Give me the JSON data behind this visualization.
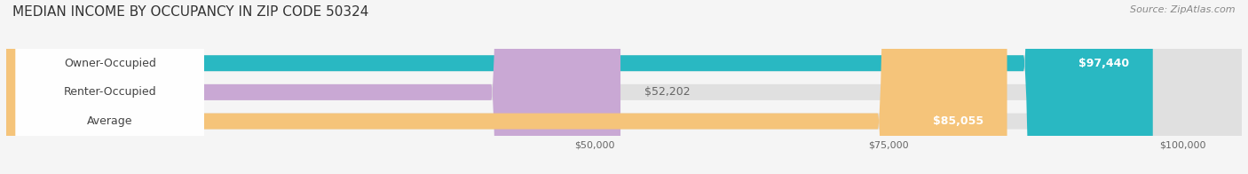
{
  "title": "MEDIAN INCOME BY OCCUPANCY IN ZIP CODE 50324",
  "source": "Source: ZipAtlas.com",
  "categories": [
    "Owner-Occupied",
    "Renter-Occupied",
    "Average"
  ],
  "values": [
    97440,
    52202,
    85055
  ],
  "bar_colors": [
    "#29b8c2",
    "#c9a8d4",
    "#f5c47a"
  ],
  "value_labels": [
    "$97,440",
    "$52,202",
    "$85,055"
  ],
  "xmax": 105000,
  "xticks": [
    50000,
    75000,
    100000
  ],
  "xtick_labels": [
    "$50,000",
    "$75,000",
    "$100,000"
  ],
  "bar_height": 0.55,
  "background_color": "#f5f5f5",
  "bar_bg_color": "#e0e0e0",
  "title_fontsize": 11,
  "source_fontsize": 8,
  "label_fontsize": 9,
  "value_fontsize": 9
}
